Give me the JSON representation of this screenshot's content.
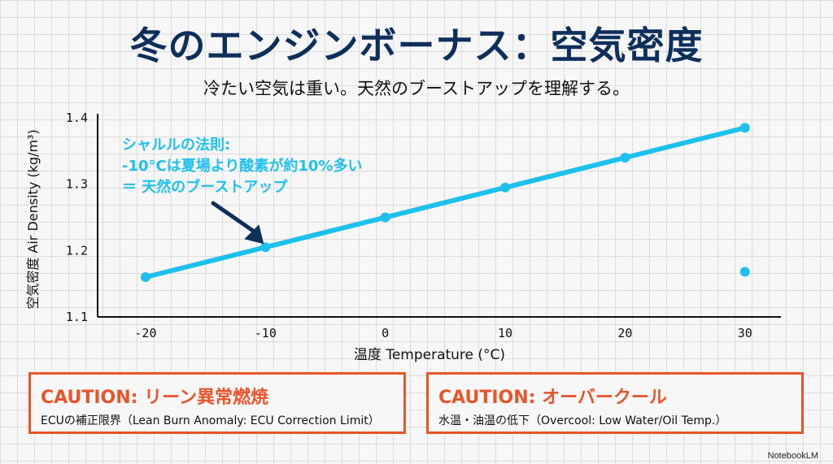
{
  "title": "冬のエンジンボーナス：空気密度",
  "subtitle": "冷たい空気は重い。天然のブーストアップを理解する。",
  "chart_data": {
    "type": "line",
    "xlabel": "温度 Temperature (°C)",
    "ylabel": "空気密度 Air Density (kg/m³)",
    "xlim": [
      -24,
      33
    ],
    "ylim": [
      1.1,
      1.4
    ],
    "x_ticks": [
      -20,
      -10,
      0,
      10,
      20,
      30
    ],
    "y_ticks": [
      1.1,
      1.2,
      1.3,
      1.4
    ],
    "series": [
      {
        "x": [
          -20,
          -10,
          0,
          10,
          20,
          30
        ],
        "y": [
          1.16,
          1.205,
          1.25,
          1.295,
          1.34,
          1.385
        ],
        "color": "#1ec0ee"
      }
    ],
    "extra_points": [
      {
        "x": 30,
        "y": 1.168,
        "color": "#1ec0ee"
      }
    ],
    "annotation": {
      "lines": [
        "シャルルの法則:",
        "-10°Cは夏場より酸素が約10%多い",
        "＝ 天然のブーストアップ"
      ],
      "color": "#1ec0ee",
      "arrow_target": {
        "x": -10,
        "y": 1.205
      }
    }
  },
  "cautions": [
    {
      "heading": "CAUTION: リーン異常燃焼",
      "detail": "ECUの補正限界（Lean Burn Anomaly: ECU Correction Limit）"
    },
    {
      "heading": "CAUTION: オーバークール",
      "detail": "水温・油温の低下（Overcool: Low Water/Oil Temp.）"
    }
  ],
  "caution_color": "#e8542a",
  "logo_text": "NotebookLM"
}
